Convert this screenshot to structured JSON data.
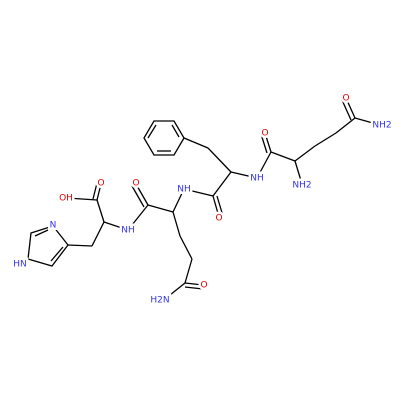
{
  "atoms": [
    {
      "label": "O"
    },
    {
      "label": "NH2"
    },
    {
      "label": "O"
    },
    {
      "label": "NH"
    },
    {
      "label": "NH2"
    },
    {
      "label": "OH"
    },
    {
      "label": "O"
    },
    {
      "label": "O"
    },
    {
      "label": "NH"
    },
    {
      "label": "O"
    },
    {
      "label": "NH"
    },
    {
      "label": "N"
    },
    {
      "label": "HN"
    },
    {
      "label": "H2N"
    },
    {
      "label": "O"
    }
  ]
}
